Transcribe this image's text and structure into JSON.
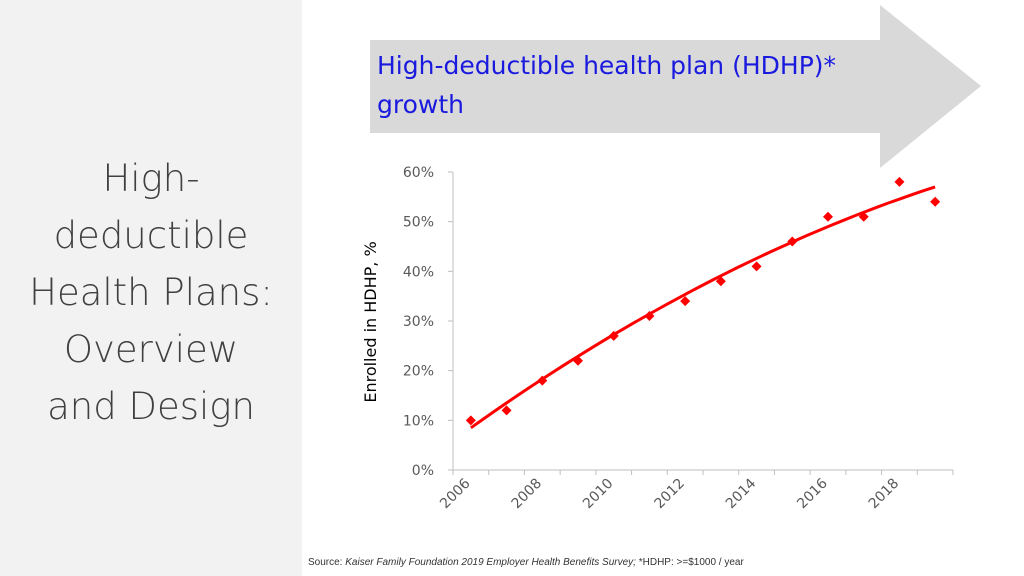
{
  "slide": {
    "title_lines": [
      "High-",
      "deductible",
      "Health Plans:",
      "Overview",
      "and Design"
    ]
  },
  "banner": {
    "title_lines": [
      "High-deductible health plan (HDHP)*",
      "growth"
    ],
    "arrow_color": "#d9d9d9",
    "text_color": "#1a1adf"
  },
  "chart_data": {
    "type": "scatter",
    "ylabel": "Enrolled in HDHP, %",
    "xlabel": "",
    "xlim": [
      2006,
      2020
    ],
    "ylim": [
      0,
      60
    ],
    "x_ticks": [
      "2006",
      "2008",
      "2010",
      "2012",
      "2014",
      "2016",
      "2018"
    ],
    "y_ticks": [
      "0%",
      "10%",
      "20%",
      "30%",
      "40%",
      "50%",
      "60%"
    ],
    "series": [
      {
        "x": [
          2006,
          2007,
          2008,
          2009,
          2010,
          2011,
          2012,
          2013,
          2014,
          2015,
          2016,
          2017,
          2018,
          2019
        ],
        "values": [
          10,
          12,
          18,
          22,
          27,
          31,
          34,
          38,
          41,
          46,
          51,
          51,
          58,
          54
        ],
        "color": "#ff0000",
        "marker": "diamond"
      }
    ],
    "trendline": {
      "type": "polynomial",
      "color": "#ff0000",
      "x_range": [
        2006,
        2019
      ],
      "y_range": [
        8.5,
        57
      ]
    },
    "grid": false,
    "legend": "none"
  },
  "source": {
    "prefix": "Source: ",
    "citation": "Kaiser Family Foundation 2019 Employer Health Benefits Survey;",
    "note": " *HDHP: >=$1000 / year"
  }
}
